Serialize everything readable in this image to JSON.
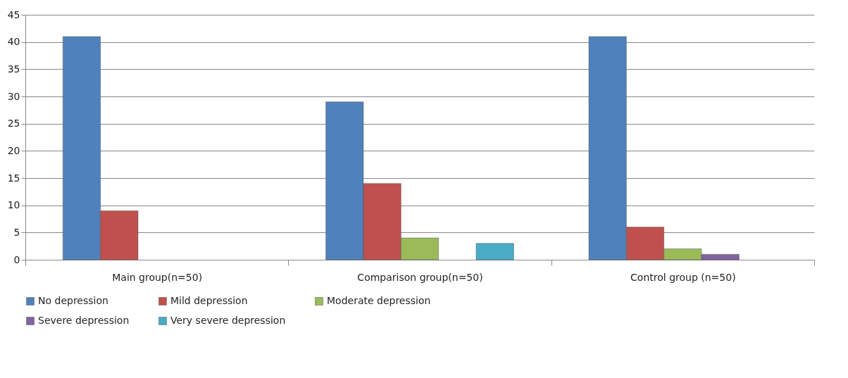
{
  "chart_data": {
    "type": "bar",
    "categories": [
      "Main group(n=50)",
      "Comparison group(n=50)",
      "Control group (n=50)"
    ],
    "series": [
      {
        "name": "No depression",
        "color": "#4f81bd",
        "values": [
          41,
          29,
          41
        ]
      },
      {
        "name": "Mild depression",
        "color": "#c0504d",
        "values": [
          9,
          14,
          6
        ]
      },
      {
        "name": "Moderate depression",
        "color": "#9bbb59",
        "values": [
          0,
          4,
          2
        ]
      },
      {
        "name": "Severe depression",
        "color": "#8064a2",
        "values": [
          0,
          0,
          1
        ]
      },
      {
        "name": "Very severe depression",
        "color": "#4bacc6",
        "values": [
          0,
          3,
          0
        ]
      }
    ],
    "ylim": [
      0,
      45
    ],
    "yticks": [
      0,
      5,
      10,
      15,
      20,
      25,
      30,
      35,
      40,
      45
    ],
    "grid": "y",
    "legend": "bottom"
  }
}
